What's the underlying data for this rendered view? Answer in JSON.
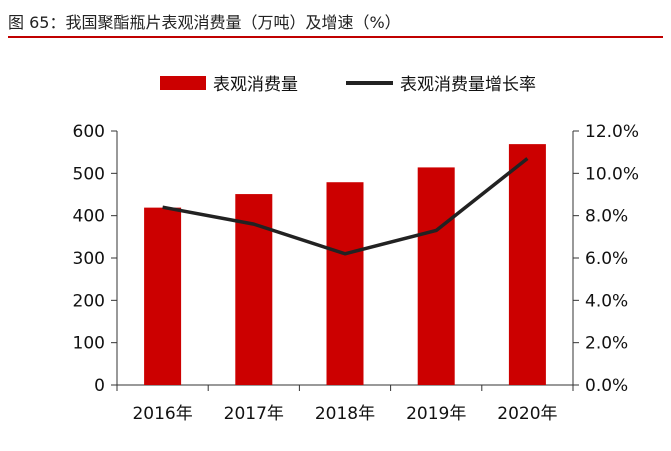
{
  "figure": {
    "title": "图 65：我国聚酯瓶片表观消费量（万吨）及增速（%）"
  },
  "colors": {
    "bar": "#cc0000",
    "line": "#222222",
    "title_rule": "#c00000"
  },
  "chart_data": {
    "type": "bar",
    "categories": [
      "2016年",
      "2017年",
      "2018年",
      "2019年",
      "2020年"
    ],
    "series": [
      {
        "name": "表观消费量",
        "type": "bar",
        "axis": "left",
        "values": [
          419,
          451,
          479,
          514,
          569
        ]
      },
      {
        "name": "表观消费量增长率",
        "type": "line",
        "axis": "right",
        "values": [
          8.4,
          7.6,
          6.2,
          7.3,
          10.7
        ]
      }
    ],
    "y_left": {
      "lim": [
        0,
        600
      ],
      "ticks": [
        "0",
        "100",
        "200",
        "300",
        "400",
        "500",
        "600"
      ]
    },
    "y_right": {
      "lim": [
        0,
        12
      ],
      "ticks": [
        "0.0%",
        "2.0%",
        "4.0%",
        "6.0%",
        "8.0%",
        "10.0%",
        "12.0%"
      ]
    },
    "legend": {
      "position": "top"
    },
    "grid": false
  }
}
